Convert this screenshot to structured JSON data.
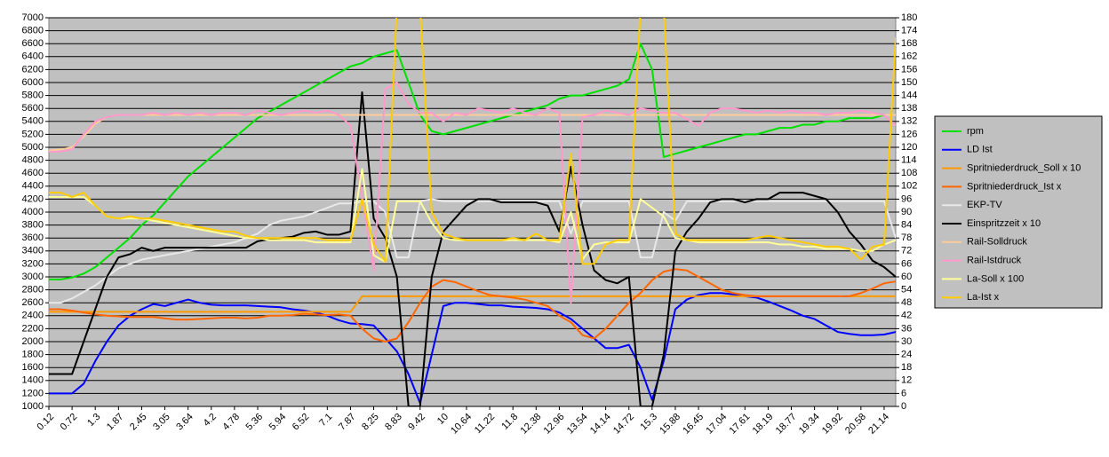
{
  "chart_data": {
    "type": "line",
    "categories": [
      "0.12",
      null,
      "0.72",
      null,
      "1.3",
      null,
      "1.87",
      null,
      "2.45",
      null,
      "3.05",
      null,
      "3.64",
      null,
      "4.2",
      null,
      "4.78",
      null,
      "5.36",
      null,
      "5.94",
      null,
      "6.52",
      null,
      "7.1",
      null,
      "7.87",
      null,
      "8.25",
      null,
      "8.83",
      null,
      "9.42",
      null,
      "10",
      null,
      "10.64",
      null,
      "11.22",
      null,
      "11.8",
      null,
      "12.38",
      null,
      "12.96",
      null,
      "13.54",
      null,
      "14.14",
      null,
      "14.72",
      null,
      "15.3",
      null,
      "15.88",
      null,
      "16.45",
      null,
      "17.04",
      null,
      "17.61",
      null,
      "18.19",
      null,
      "18.77",
      null,
      "19.34",
      null,
      "19.92",
      null,
      "20.58",
      null,
      "21.14",
      null
    ],
    "ylim": [
      1000,
      7000
    ],
    "yticks": [
      1000,
      1200,
      1400,
      1600,
      1800,
      2000,
      2200,
      2400,
      2600,
      2800,
      3000,
      3200,
      3400,
      3600,
      3800,
      4000,
      4200,
      4400,
      4600,
      4800,
      5000,
      5200,
      5400,
      5600,
      5800,
      6000,
      6200,
      6400,
      6600,
      6800,
      7000
    ],
    "y2lim": [
      0,
      180
    ],
    "y2ticks": [
      0,
      6,
      12,
      18,
      24,
      30,
      36,
      42,
      48,
      54,
      60,
      66,
      72,
      78,
      84,
      90,
      96,
      102,
      108,
      114,
      120,
      126,
      132,
      138,
      144,
      150,
      156,
      162,
      168,
      174,
      180
    ],
    "grid": true,
    "legend": "right",
    "series": [
      {
        "name": "rpm",
        "color": "#00e000",
        "values": [
          2960,
          2960,
          2990,
          3050,
          3150,
          3300,
          3450,
          3600,
          3800,
          3950,
          4150,
          4350,
          4550,
          4700,
          4850,
          5000,
          5150,
          5300,
          5450,
          5550,
          5650,
          5750,
          5850,
          5950,
          6050,
          6150,
          6250,
          6300,
          6400,
          6450,
          6500,
          6000,
          5500,
          5250,
          5200,
          5250,
          5300,
          5350,
          5400,
          5450,
          5500,
          5550,
          5600,
          5650,
          5750,
          5800,
          5800,
          5850,
          5900,
          5950,
          6050,
          6600,
          6200,
          4850,
          4900,
          4950,
          5000,
          5050,
          5100,
          5150,
          5200,
          5200,
          5250,
          5300,
          5300,
          5350,
          5350,
          5400,
          5400,
          5450,
          5450,
          5450,
          5500,
          5500
        ]
      },
      {
        "name": "LD Ist",
        "color": "#0000ff",
        "values": [
          1200,
          1200,
          1200,
          1350,
          1700,
          2000,
          2250,
          2400,
          2500,
          2580,
          2550,
          2600,
          2650,
          2600,
          2570,
          2560,
          2560,
          2560,
          2550,
          2540,
          2530,
          2500,
          2480,
          2450,
          2400,
          2330,
          2280,
          2270,
          2250,
          2050,
          1850,
          1500,
          1050,
          1800,
          2550,
          2600,
          2600,
          2580,
          2560,
          2560,
          2540,
          2530,
          2520,
          2500,
          2450,
          2350,
          2200,
          2050,
          1900,
          1900,
          1950,
          1600,
          1100,
          1700,
          2500,
          2650,
          2720,
          2750,
          2750,
          2730,
          2700,
          2680,
          2620,
          2550,
          2480,
          2400,
          2350,
          2250,
          2150,
          2120,
          2100,
          2100,
          2110,
          2150
        ]
      },
      {
        "name": "Spritniederdruck_Soll x 10",
        "color": "#ff9900",
        "values": [
          2460,
          2460,
          2460,
          2460,
          2460,
          2460,
          2460,
          2460,
          2460,
          2460,
          2460,
          2460,
          2460,
          2460,
          2460,
          2460,
          2460,
          2460,
          2460,
          2460,
          2460,
          2460,
          2460,
          2460,
          2460,
          2460,
          2460,
          2700,
          2700,
          2700,
          2700,
          2700,
          2700,
          2700,
          2700,
          2700,
          2700,
          2700,
          2700,
          2700,
          2700,
          2700,
          2700,
          2700,
          2700,
          2700,
          2700,
          2700,
          2700,
          2700,
          2700,
          2700,
          2700,
          2700,
          2700,
          2700,
          2700,
          2700,
          2700,
          2700,
          2700,
          2700,
          2700,
          2700,
          2700,
          2700,
          2700,
          2700,
          2700,
          2700,
          2700,
          2700,
          2700,
          2700
        ]
      },
      {
        "name": "Spritniederdruck_Ist x",
        "color": "#ff6600",
        "values": [
          2500,
          2500,
          2480,
          2450,
          2420,
          2400,
          2390,
          2380,
          2380,
          2380,
          2360,
          2340,
          2340,
          2350,
          2360,
          2370,
          2370,
          2360,
          2370,
          2400,
          2400,
          2410,
          2430,
          2420,
          2410,
          2420,
          2400,
          2200,
          2050,
          2000,
          2050,
          2300,
          2600,
          2850,
          2950,
          2920,
          2850,
          2780,
          2720,
          2700,
          2680,
          2650,
          2600,
          2550,
          2400,
          2300,
          2100,
          2050,
          2200,
          2400,
          2600,
          2750,
          2950,
          3080,
          3120,
          3100,
          3000,
          2900,
          2800,
          2750,
          2720,
          2700,
          2700,
          2700,
          2700,
          2700,
          2700,
          2700,
          2700,
          2700,
          2750,
          2820,
          2900,
          2930
        ]
      },
      {
        "name": "EKP-TV",
        "color": "#e8e8e8",
        "axis": "y2",
        "values": [
          48,
          48,
          50,
          53,
          56,
          60,
          64,
          66,
          68,
          69,
          70,
          71,
          72,
          73,
          74,
          75,
          76,
          78,
          80,
          84,
          86,
          87,
          88,
          90,
          92,
          94,
          94,
          95,
          95,
          90,
          69,
          69,
          95,
          96,
          95,
          95,
          95,
          95,
          95,
          95,
          95,
          95,
          95,
          95,
          95,
          80,
          95,
          95,
          95,
          95,
          95,
          69,
          69,
          90,
          86,
          95,
          95,
          95,
          95,
          95,
          95,
          95,
          95,
          95,
          95,
          95,
          95,
          95,
          95,
          95,
          95,
          95,
          95,
          78
        ]
      },
      {
        "name": "Einspritzzeit x 10",
        "color": "#000000",
        "values": [
          1500,
          1500,
          1500,
          2000,
          2500,
          3000,
          3300,
          3350,
          3450,
          3400,
          3450,
          3450,
          3450,
          3450,
          3450,
          3450,
          3450,
          3450,
          3550,
          3580,
          3600,
          3620,
          3680,
          3700,
          3650,
          3650,
          3700,
          5850,
          3900,
          3600,
          3000,
          1000,
          1000,
          3000,
          3700,
          3900,
          4100,
          4200,
          4200,
          4150,
          4150,
          4150,
          4150,
          4100,
          3700,
          4700,
          3800,
          3100,
          2950,
          2900,
          3000,
          1000,
          1000,
          1800,
          3400,
          3700,
          3900,
          4150,
          4200,
          4200,
          4150,
          4200,
          4200,
          4300,
          4300,
          4300,
          4250,
          4200,
          4000,
          3700,
          3500,
          3250,
          3150,
          3000
        ]
      },
      {
        "name": "Rail-Solldruck",
        "color": "#ffcc99",
        "axis": "y2",
        "values": [
          118.5,
          119,
          120,
          125,
          131,
          134,
          135,
          135,
          135,
          135,
          135,
          135,
          135,
          135,
          135,
          135,
          135,
          135,
          135,
          135,
          135,
          135,
          135,
          135,
          135,
          135,
          135,
          135,
          135,
          135,
          135,
          135,
          135,
          135,
          135,
          135,
          135,
          135,
          135,
          135,
          135,
          135,
          135,
          135,
          135,
          135,
          135,
          135,
          135,
          135,
          135,
          135,
          135,
          135,
          135,
          135,
          135,
          135,
          135,
          135,
          135,
          135,
          135,
          135,
          135,
          135,
          135,
          135,
          135,
          135,
          135,
          135,
          135,
          135
        ]
      },
      {
        "name": "Rail-Istdruck",
        "color": "#ff99cc",
        "axis": "y2",
        "values": [
          118,
          118,
          119,
          126,
          132,
          134,
          135,
          135,
          135,
          136,
          135,
          136,
          135,
          136,
          135,
          136,
          136,
          135,
          137,
          136,
          135,
          136,
          137,
          136,
          137,
          135,
          130,
          97,
          63,
          147,
          150,
          140,
          136,
          136,
          132,
          136,
          135,
          138,
          137,
          136,
          138,
          136,
          135,
          138,
          136,
          48,
          134,
          135,
          137,
          136,
          135,
          138,
          137,
          136,
          136,
          133,
          130,
          136,
          138,
          138,
          137,
          136,
          137,
          136,
          137,
          136,
          136,
          135,
          136,
          136,
          137,
          136,
          135,
          130
        ]
      },
      {
        "name": "La-Soll x 100",
        "color": "#ffff99",
        "axis": "y2",
        "values": [
          97,
          97,
          97,
          97,
          93,
          88,
          87,
          87,
          87,
          86,
          85,
          84,
          83,
          82,
          81,
          80,
          79,
          78,
          78,
          77,
          77,
          77,
          77,
          76,
          76,
          76,
          76,
          110,
          70,
          67,
          95,
          95,
          95,
          85,
          78,
          77,
          77,
          77,
          77,
          77,
          77,
          77,
          77,
          77,
          76,
          90,
          68,
          75,
          76,
          76,
          76,
          96,
          92,
          88,
          78,
          77,
          76,
          76,
          76,
          76,
          76,
          76,
          76,
          75,
          75,
          74,
          74,
          73,
          73,
          73,
          72,
          72,
          75,
          77
        ]
      },
      {
        "name": "La-Ist x",
        "color": "#ffcc00",
        "axis": "y2",
        "values": [
          99,
          99,
          97,
          99,
          93,
          88,
          87,
          88,
          87,
          87,
          86,
          85,
          84,
          83,
          82,
          81,
          81,
          79,
          78,
          78,
          78,
          78,
          78,
          78,
          77,
          77,
          77,
          96,
          75,
          67,
          185,
          185,
          185,
          90,
          80,
          78,
          77,
          77,
          77,
          77,
          78,
          77,
          80,
          77,
          77,
          117,
          66,
          66,
          75,
          77,
          77,
          185,
          185,
          185,
          80,
          77,
          77,
          77,
          77,
          77,
          77,
          78,
          79,
          78,
          77,
          76,
          75,
          74,
          74,
          73,
          68,
          74,
          75,
          171
        ]
      }
    ]
  }
}
